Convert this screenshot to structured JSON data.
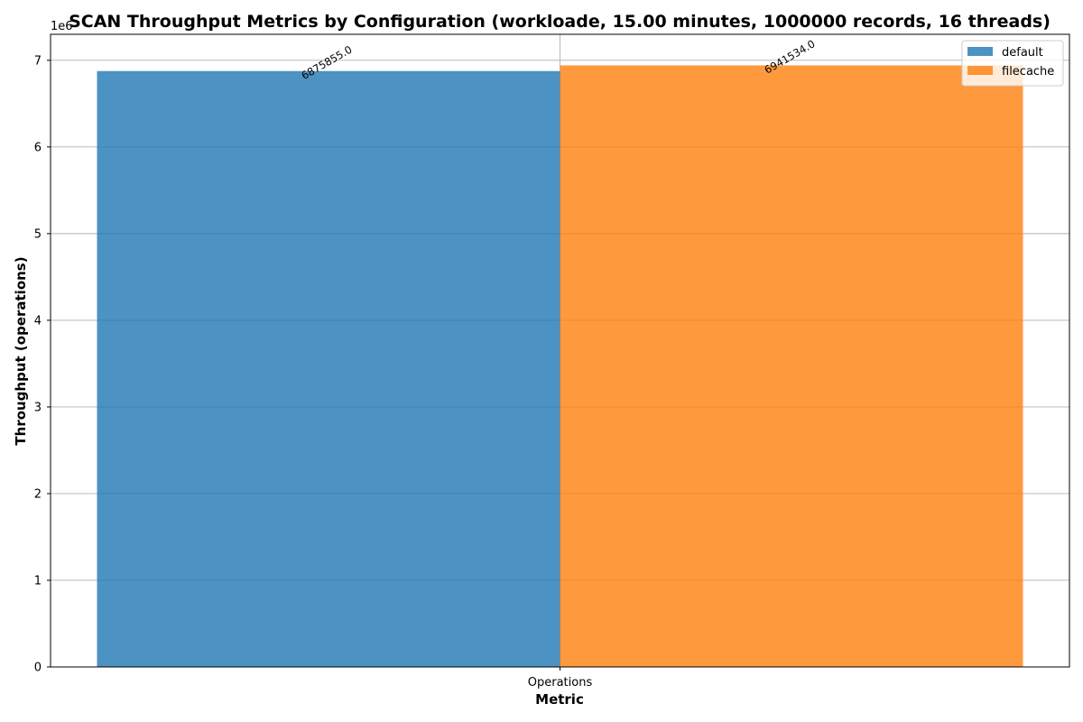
{
  "chart_data": {
    "type": "bar",
    "title": "SCAN Throughput Metrics by Configuration (workloade, 15.00 minutes, 1000000 records, 16 threads)",
    "xlabel": "Metric",
    "ylabel": "Throughput (operations)",
    "categories": [
      "Operations"
    ],
    "series": [
      {
        "name": "default",
        "values": [
          6875855.0
        ],
        "color": "#1f77b4",
        "label": "6875855.0"
      },
      {
        "name": "filecache",
        "values": [
          6941534.0
        ],
        "color": "#ff7f0e",
        "label": "6941534.0"
      }
    ],
    "ylim": [
      0,
      7300000
    ],
    "yticks": [
      0,
      1000000,
      2000000,
      3000000,
      4000000,
      5000000,
      6000000,
      7000000
    ],
    "ytick_labels": [
      "0",
      "1",
      "2",
      "3",
      "4",
      "5",
      "6",
      "7"
    ],
    "y_offset_label": "1e6",
    "grid": true,
    "legend_position": "top-right"
  }
}
